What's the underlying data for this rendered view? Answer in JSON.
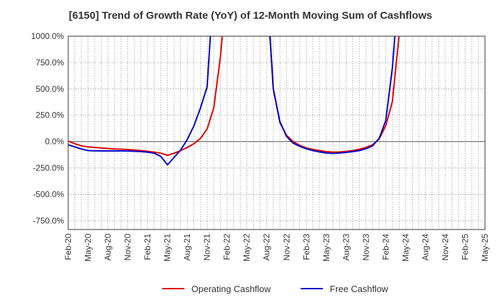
{
  "chart_data": {
    "type": "line",
    "title": "[6150]  Trend of Growth Rate (YoY) of 12-Month Moving Sum of Cashflows",
    "xlabel": "",
    "ylabel": "",
    "ylim": [
      -833.3,
      1000
    ],
    "y_ticks": [
      1000,
      750,
      500,
      250,
      0,
      -250,
      -500,
      -750
    ],
    "y_tick_labels": [
      "1000.0%",
      "750.0%",
      "500.0%",
      "250.0%",
      "0.0%",
      "-250.0%",
      "-500.0%",
      "-750.0%"
    ],
    "x_tick_labels": [
      "Feb-20",
      "May-20",
      "Aug-20",
      "Nov-20",
      "Feb-21",
      "May-21",
      "Aug-21",
      "Nov-21",
      "Feb-22",
      "May-22",
      "Aug-22",
      "Nov-22",
      "Feb-23",
      "May-23",
      "Aug-23",
      "Nov-23",
      "Feb-24",
      "May-24",
      "Aug-24",
      "Nov-24",
      "Feb-25",
      "May-25"
    ],
    "x": [
      "Feb-20",
      "Mar-20",
      "Apr-20",
      "May-20",
      "Jun-20",
      "Jul-20",
      "Aug-20",
      "Sep-20",
      "Oct-20",
      "Nov-20",
      "Dec-20",
      "Jan-21",
      "Feb-21",
      "Mar-21",
      "Apr-21",
      "May-21",
      "Jun-21",
      "Jul-21",
      "Aug-21",
      "Sep-21",
      "Oct-21",
      "Nov-21",
      "Dec-21",
      "Jan-22",
      "Feb-22",
      "Mar-22",
      "Apr-22",
      "May-22",
      "Jun-22",
      "Jul-22",
      "Aug-22",
      "Sep-22",
      "Oct-22",
      "Nov-22",
      "Dec-22",
      "Jan-23",
      "Feb-23",
      "Mar-23",
      "Apr-23",
      "May-23",
      "Jun-23",
      "Jul-23",
      "Aug-23",
      "Sep-23",
      "Oct-23",
      "Nov-23",
      "Dec-23",
      "Jan-24",
      "Feb-24",
      "Mar-24",
      "Apr-24",
      "May-24",
      "Jun-24",
      "Jul-24",
      "Aug-24",
      "Sep-24",
      "Oct-24",
      "Nov-24",
      "Dec-24",
      "Jan-25",
      "Feb-25",
      "Mar-25",
      "Apr-25",
      "May-25"
    ],
    "series": [
      {
        "name": "Operating Cashflow",
        "color": "#e00000",
        "values": [
          5,
          -20,
          -40,
          -50,
          -55,
          -60,
          -65,
          -70,
          -72,
          -75,
          -80,
          -85,
          -92,
          -100,
          -110,
          -130,
          -110,
          -85,
          -55,
          -20,
          30,
          120,
          320,
          800,
          1500,
          null,
          null,
          null,
          null,
          null,
          1500,
          500,
          180,
          60,
          0,
          -35,
          -60,
          -75,
          -85,
          -95,
          -100,
          -98,
          -92,
          -85,
          -72,
          -55,
          -30,
          25,
          150,
          380,
          1000,
          1500,
          null,
          null,
          null,
          null,
          null,
          null,
          null,
          null,
          null,
          null,
          null,
          null
        ]
      },
      {
        "name": "Free Cashflow",
        "color": "#0000cc",
        "values": [
          -30,
          -50,
          -70,
          -85,
          -87,
          -88,
          -88,
          -88,
          -88,
          -89,
          -91,
          -95,
          -100,
          -110,
          -140,
          -220,
          -150,
          -80,
          20,
          150,
          320,
          520,
          1500,
          null,
          null,
          null,
          null,
          null,
          null,
          null,
          1500,
          500,
          190,
          50,
          -15,
          -45,
          -68,
          -85,
          -98,
          -108,
          -112,
          -108,
          -102,
          -95,
          -85,
          -68,
          -40,
          30,
          200,
          700,
          1500,
          null,
          null,
          null,
          null,
          null,
          null,
          null,
          null,
          null,
          null,
          null,
          null,
          null
        ]
      }
    ],
    "grid": true,
    "legend_position": "bottom"
  }
}
